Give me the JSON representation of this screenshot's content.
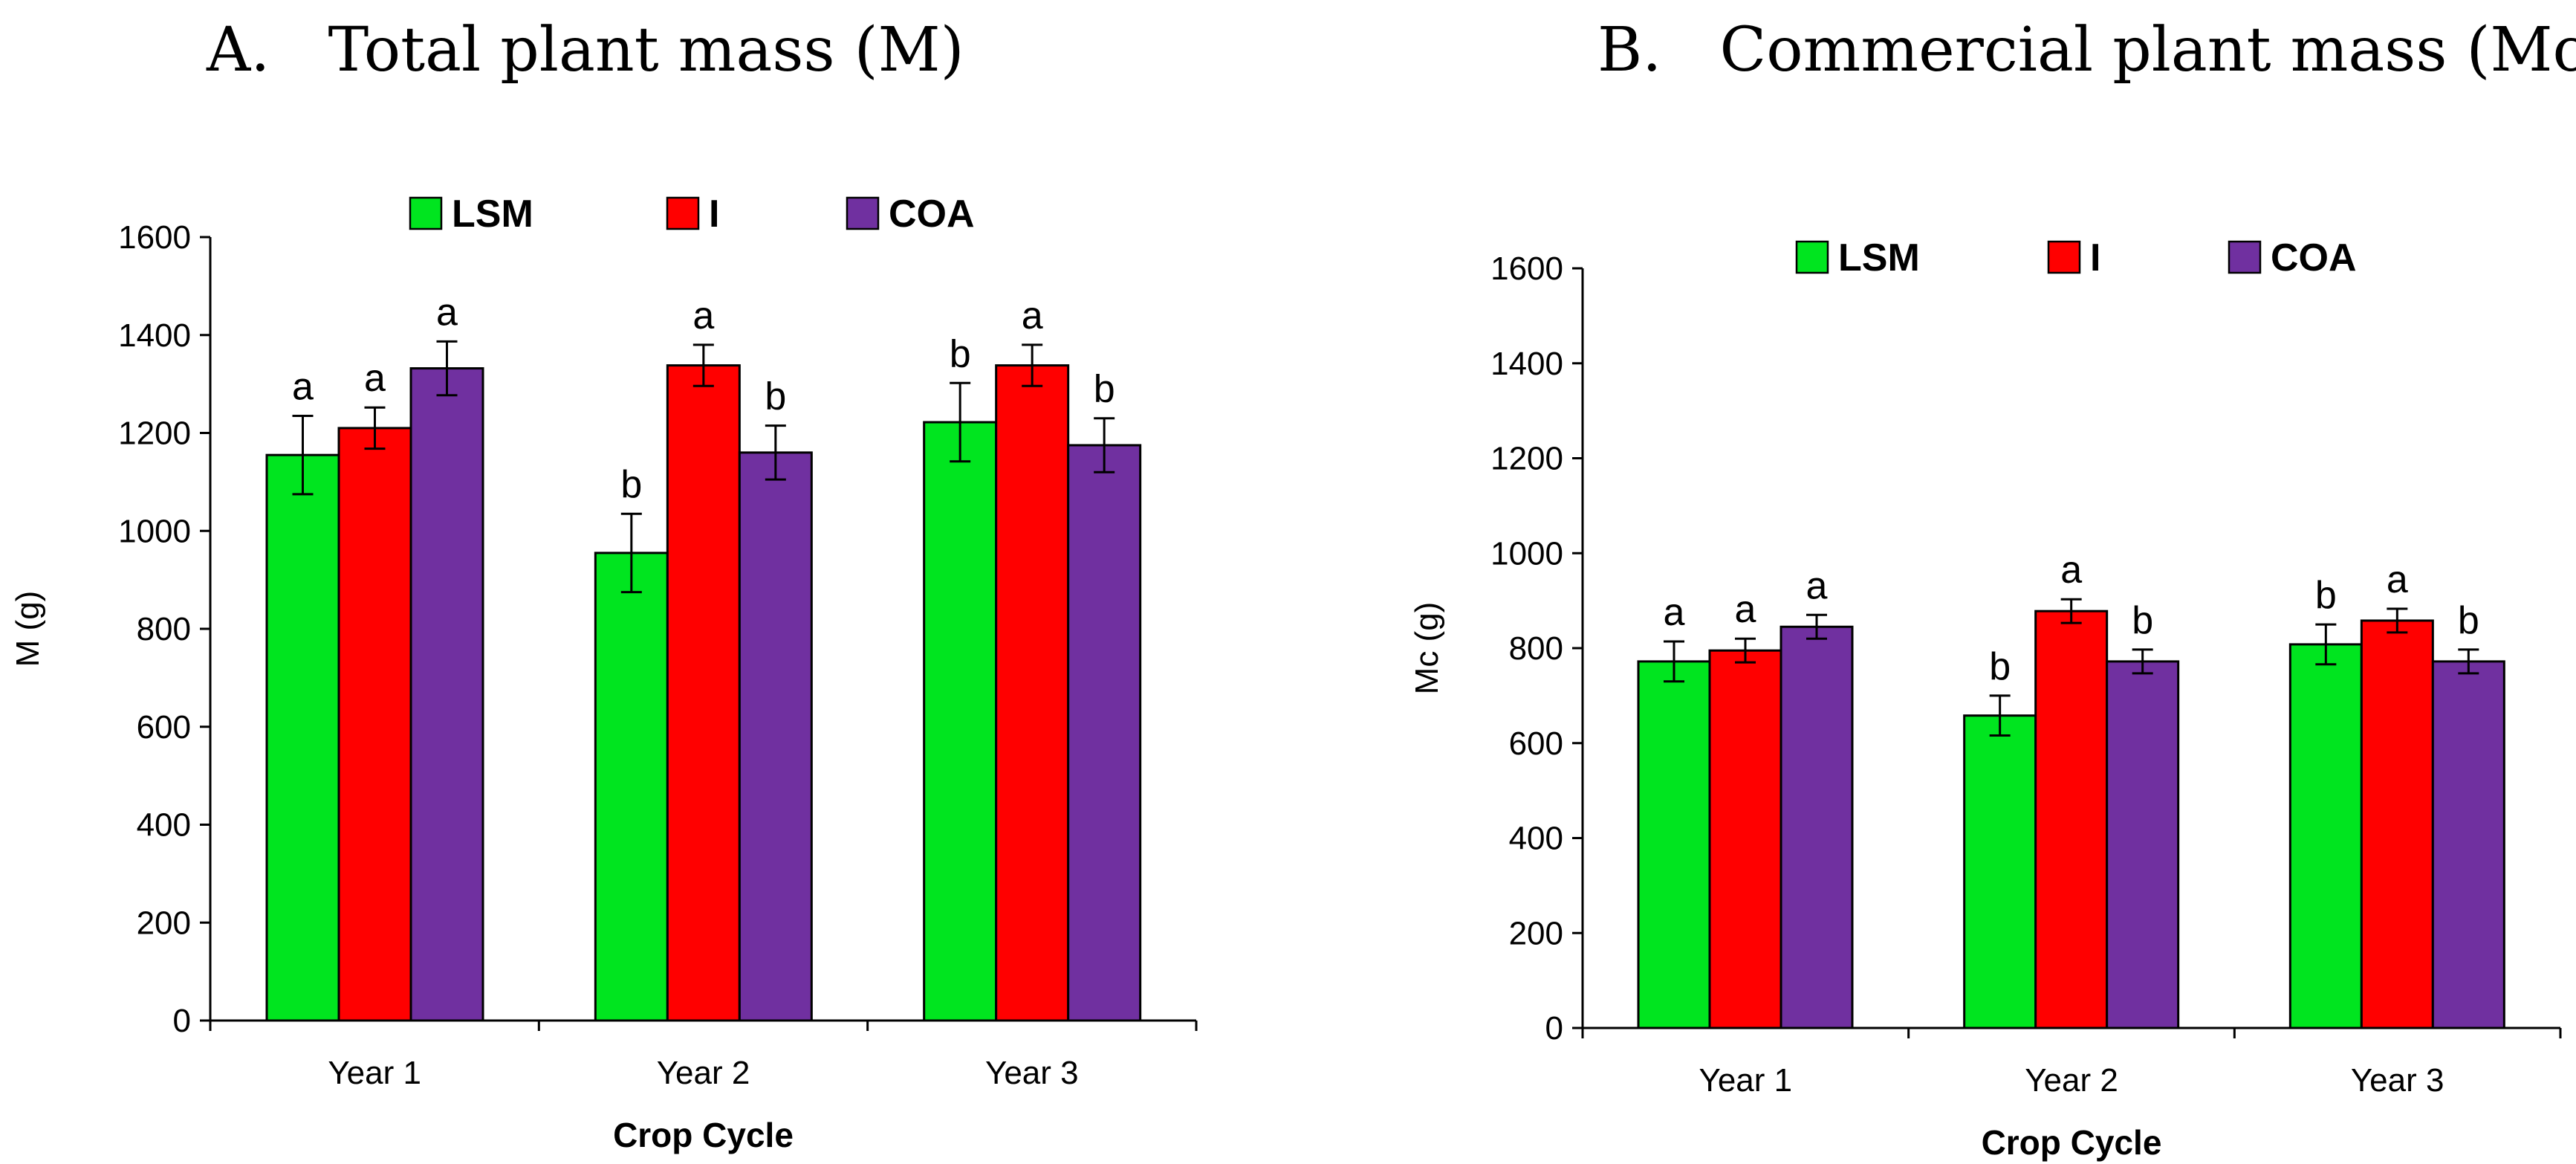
{
  "chart_data": [
    {
      "id": "A",
      "type": "bar",
      "title": "A.   Total plant mass (M)",
      "xlabel": "Crop Cycle",
      "ylabel": "M (g)",
      "ylim": [
        0,
        1600
      ],
      "yticks": [
        0,
        200,
        400,
        600,
        800,
        1000,
        1200,
        1400,
        1600
      ],
      "categories": [
        "Year 1",
        "Year 2",
        "Year 3"
      ],
      "legend_position": "top",
      "series": [
        {
          "name": "LSM",
          "color": "#00e51f",
          "values": [
            1155,
            955,
            1222
          ],
          "errors": [
            80,
            80,
            80
          ],
          "letters": [
            "a",
            "b",
            "b"
          ]
        },
        {
          "name": "I",
          "color": "#ff0000",
          "values": [
            1210,
            1338,
            1338
          ],
          "errors": [
            42,
            42,
            42
          ],
          "letters": [
            "a",
            "a",
            "a"
          ]
        },
        {
          "name": "COA",
          "color": "#7030a0",
          "values": [
            1332,
            1160,
            1175
          ],
          "errors": [
            55,
            55,
            55
          ],
          "letters": [
            "a",
            "b",
            "b"
          ]
        }
      ]
    },
    {
      "id": "B",
      "type": "bar",
      "title": "B.   Commercial plant mass (Mc)",
      "xlabel": "Crop Cycle",
      "ylabel": "Mc (g)",
      "ylim": [
        0,
        1600
      ],
      "yticks": [
        0,
        200,
        400,
        600,
        800,
        1000,
        1200,
        1400,
        1600
      ],
      "categories": [
        "Year 1",
        "Year 2",
        "Year 3"
      ],
      "legend_position": "top",
      "series": [
        {
          "name": "LSM",
          "color": "#00e51f",
          "values": [
            772,
            658,
            808
          ],
          "errors": [
            42,
            42,
            42
          ],
          "letters": [
            "a",
            "b",
            "b"
          ]
        },
        {
          "name": "I",
          "color": "#ff0000",
          "values": [
            795,
            878,
            858
          ],
          "errors": [
            25,
            25,
            25
          ],
          "letters": [
            "a",
            "a",
            "a"
          ]
        },
        {
          "name": "COA",
          "color": "#7030a0",
          "values": [
            845,
            772,
            772
          ],
          "errors": [
            25,
            25,
            25
          ],
          "letters": [
            "a",
            "b",
            "b"
          ]
        }
      ]
    }
  ]
}
